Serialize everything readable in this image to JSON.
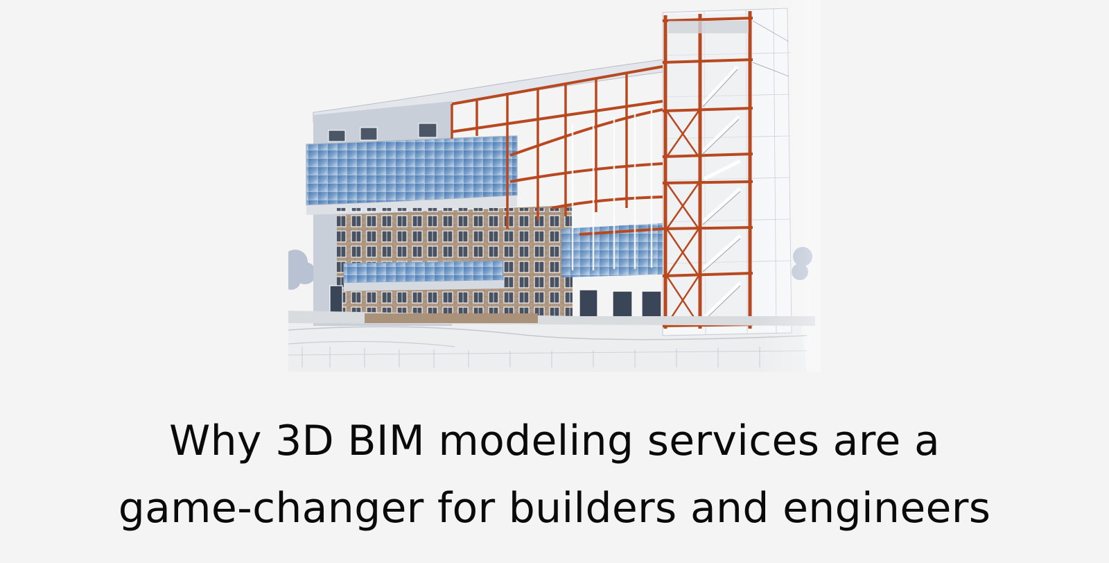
{
  "hero": {
    "image_name": "bim-building-cutaway-render",
    "image_alt": "3D BIM model of a multi-storey building with exposed steel frame and stair tower"
  },
  "headline": {
    "line1": "Why 3D BIM modeling services are a",
    "line2": "game-changer for builders and engineers"
  },
  "colors": {
    "background": "#f4f4f4",
    "text": "#0a0a0a",
    "steel_frame": "#b8481f",
    "glass": "#5b86b6",
    "brick": "#a58b73",
    "cladding": "#c9cfd9"
  }
}
